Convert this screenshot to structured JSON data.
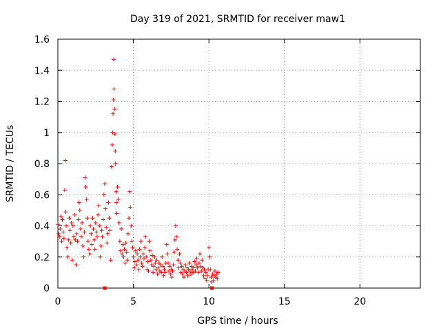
{
  "chart_data": {
    "type": "scatter",
    "title": "Day 319 of 2021, SRMTID for receiver maw1",
    "xlabel": "GPS time / hours",
    "ylabel": "SRMTID / TECUs",
    "xlim": [
      0,
      24
    ],
    "ylim": [
      0,
      1.6
    ],
    "xticks": [
      0,
      5,
      10,
      15,
      20
    ],
    "yticks": [
      0,
      0.2,
      0.4,
      0.6,
      0.8,
      1,
      1.2,
      1.4,
      1.6
    ],
    "xtick_labels": [
      "0",
      "5",
      "10",
      "15",
      "20"
    ],
    "ytick_labels": [
      "0",
      "0.2",
      "0.4",
      "0.6",
      "0.8",
      "1",
      "1.2",
      "1.4",
      "1.6"
    ],
    "grid": true,
    "marker": "+",
    "color": "#ff0000",
    "series": [
      {
        "name": "maw1",
        "points": [
          [
            0.0,
            0.41
          ],
          [
            0.05,
            0.35
          ],
          [
            0.1,
            0.33
          ],
          [
            0.15,
            0.38
          ],
          [
            0.2,
            0.46
          ],
          [
            0.25,
            0.3
          ],
          [
            0.3,
            0.44
          ],
          [
            0.35,
            0.36
          ],
          [
            0.4,
            0.32
          ],
          [
            0.45,
            0.63
          ],
          [
            0.5,
            0.82
          ],
          [
            0.52,
            0.49
          ],
          [
            0.55,
            0.4
          ],
          [
            0.6,
            0.26
          ],
          [
            0.65,
            0.2
          ],
          [
            0.7,
            0.31
          ],
          [
            0.75,
            0.45
          ],
          [
            0.8,
            0.37
          ],
          [
            0.85,
            0.29
          ],
          [
            0.9,
            0.42
          ],
          [
            0.95,
            0.18
          ],
          [
            1.0,
            0.4
          ],
          [
            1.05,
            0.33
          ],
          [
            1.1,
            0.47
          ],
          [
            1.15,
            0.31
          ],
          [
            1.2,
            0.15
          ],
          [
            1.25,
            0.35
          ],
          [
            1.3,
            0.3
          ],
          [
            1.35,
            0.44
          ],
          [
            1.4,
            0.55
          ],
          [
            1.45,
            0.5
          ],
          [
            1.5,
            0.38
          ],
          [
            1.55,
            0.33
          ],
          [
            1.6,
            0.42
          ],
          [
            1.65,
            0.27
          ],
          [
            1.7,
            0.2
          ],
          [
            1.75,
            0.36
          ],
          [
            1.8,
            0.71
          ],
          [
            1.85,
            0.65
          ],
          [
            1.9,
            0.57
          ],
          [
            1.95,
            0.45
          ],
          [
            2.0,
            0.3
          ],
          [
            2.05,
            0.25
          ],
          [
            2.1,
            0.22
          ],
          [
            2.15,
            0.4
          ],
          [
            2.2,
            0.35
          ],
          [
            2.25,
            0.28
          ],
          [
            2.3,
            0.45
          ],
          [
            2.35,
            0.38
          ],
          [
            2.4,
            0.31
          ],
          [
            2.45,
            0.25
          ],
          [
            2.5,
            0.42
          ],
          [
            2.55,
            0.36
          ],
          [
            2.6,
            0.33
          ],
          [
            2.65,
            0.47
          ],
          [
            2.7,
            0.53
          ],
          [
            2.75,
            0.4
          ],
          [
            2.8,
            0.2
          ],
          [
            2.85,
            0.27
          ],
          [
            2.9,
            0.37
          ],
          [
            2.95,
            0.33
          ],
          [
            3.0,
            0.44
          ],
          [
            3.05,
            0.6
          ],
          [
            3.1,
            0.67
          ],
          [
            3.15,
            0.51
          ],
          [
            3.2,
            0.39
          ],
          [
            3.25,
            0.29
          ],
          [
            3.3,
            0.35
          ],
          [
            3.35,
            0.55
          ],
          [
            3.4,
            0.45
          ],
          [
            3.45,
            0.37
          ],
          [
            3.5,
            0.18
          ],
          [
            3.55,
            0.78
          ],
          [
            3.6,
            0.92
          ],
          [
            3.62,
            1.0
          ],
          [
            3.65,
            1.12
          ],
          [
            3.68,
            1.21
          ],
          [
            3.7,
            1.47
          ],
          [
            3.72,
            1.28
          ],
          [
            3.75,
            1.15
          ],
          [
            3.78,
            0.99
          ],
          [
            3.8,
            0.88
          ],
          [
            3.82,
            0.8
          ],
          [
            3.85,
            0.62
          ],
          [
            3.88,
            0.55
          ],
          [
            3.9,
            0.48
          ],
          [
            3.95,
            0.65
          ],
          [
            4.0,
            0.57
          ],
          [
            4.05,
            0.42
          ],
          [
            4.1,
            0.3
          ],
          [
            4.15,
            0.24
          ],
          [
            4.2,
            0.38
          ],
          [
            4.25,
            0.22
          ],
          [
            4.3,
            0.28
          ],
          [
            4.35,
            0.2
          ],
          [
            4.4,
            0.25
          ],
          [
            4.45,
            0.16
          ],
          [
            4.5,
            0.29
          ],
          [
            4.55,
            0.23
          ],
          [
            4.6,
            0.18
          ],
          [
            4.65,
            0.35
          ],
          [
            4.7,
            0.45
          ],
          [
            4.75,
            0.62
          ],
          [
            4.8,
            0.52
          ],
          [
            4.85,
            0.4
          ],
          [
            4.9,
            0.3
          ],
          [
            4.95,
            0.26
          ],
          [
            5.0,
            0.2
          ],
          [
            5.05,
            0.13
          ],
          [
            5.1,
            0.17
          ],
          [
            5.15,
            0.24
          ],
          [
            5.2,
            0.15
          ],
          [
            5.25,
            0.22
          ],
          [
            5.3,
            0.18
          ],
          [
            5.35,
            0.12
          ],
          [
            5.4,
            0.25
          ],
          [
            5.45,
            0.2
          ],
          [
            5.5,
            0.3
          ],
          [
            5.55,
            0.16
          ],
          [
            5.6,
            0.14
          ],
          [
            5.65,
            0.22
          ],
          [
            5.7,
            0.19
          ],
          [
            5.75,
            0.26
          ],
          [
            5.8,
            0.33
          ],
          [
            5.85,
            0.2
          ],
          [
            5.9,
            0.12
          ],
          [
            5.95,
            0.17
          ],
          [
            6.0,
            0.11
          ],
          [
            6.05,
            0.3
          ],
          [
            6.1,
            0.24
          ],
          [
            6.15,
            0.18
          ],
          [
            6.2,
            0.15
          ],
          [
            6.25,
            0.21
          ],
          [
            6.3,
            0.1
          ],
          [
            6.35,
            0.14
          ],
          [
            6.4,
            0.2
          ],
          [
            6.45,
            0.16
          ],
          [
            6.5,
            0.12
          ],
          [
            6.55,
            0.18
          ],
          [
            6.6,
            0.09
          ],
          [
            6.65,
            0.13
          ],
          [
            6.7,
            0.16
          ],
          [
            6.75,
            0.11
          ],
          [
            6.8,
            0.15
          ],
          [
            6.85,
            0.1
          ],
          [
            6.9,
            0.2
          ],
          [
            6.95,
            0.14
          ],
          [
            7.0,
            0.08
          ],
          [
            7.05,
            0.12
          ],
          [
            7.1,
            0.1
          ],
          [
            7.15,
            0.16
          ],
          [
            7.2,
            0.28
          ],
          [
            7.25,
            0.22
          ],
          [
            7.3,
            0.16
          ],
          [
            7.35,
            0.11
          ],
          [
            7.4,
            0.14
          ],
          [
            7.45,
            0.09
          ],
          [
            7.5,
            0.12
          ],
          [
            7.55,
            0.07
          ],
          [
            7.6,
            0.11
          ],
          [
            7.65,
            0.15
          ],
          [
            7.7,
            0.23
          ],
          [
            7.75,
            0.31
          ],
          [
            7.8,
            0.4
          ],
          [
            7.85,
            0.33
          ],
          [
            7.9,
            0.25
          ],
          [
            7.95,
            0.18
          ],
          [
            8.0,
            0.13
          ],
          [
            8.05,
            0.22
          ],
          [
            8.1,
            0.16
          ],
          [
            8.15,
            0.1
          ],
          [
            8.2,
            0.14
          ],
          [
            8.25,
            0.09
          ],
          [
            8.3,
            0.12
          ],
          [
            8.35,
            0.07
          ],
          [
            8.4,
            0.11
          ],
          [
            8.45,
            0.15
          ],
          [
            8.5,
            0.1
          ],
          [
            8.55,
            0.13
          ],
          [
            8.6,
            0.08
          ],
          [
            8.65,
            0.12
          ],
          [
            8.7,
            0.16
          ],
          [
            8.75,
            0.11
          ],
          [
            8.8,
            0.09
          ],
          [
            8.85,
            0.14
          ],
          [
            8.9,
            0.12
          ],
          [
            8.95,
            0.1
          ],
          [
            9.0,
            0.13
          ],
          [
            9.05,
            0.17
          ],
          [
            9.1,
            0.11
          ],
          [
            9.15,
            0.15
          ],
          [
            9.2,
            0.19
          ],
          [
            9.25,
            0.13
          ],
          [
            9.3,
            0.1
          ],
          [
            9.35,
            0.16
          ],
          [
            9.4,
            0.22
          ],
          [
            9.45,
            0.14
          ],
          [
            9.5,
            0.11
          ],
          [
            9.55,
            0.18
          ],
          [
            9.6,
            0.13
          ],
          [
            9.65,
            0.08
          ],
          [
            9.7,
            0.12
          ],
          [
            9.75,
            0.06
          ],
          [
            9.8,
            0.1
          ],
          [
            9.85,
            0.05
          ],
          [
            9.9,
            0.08
          ],
          [
            9.95,
            0.12
          ],
          [
            10.0,
            0.26
          ],
          [
            10.05,
            0.2
          ],
          [
            10.1,
            0.12
          ],
          [
            10.15,
            0.07
          ],
          [
            10.2,
            0.04
          ],
          [
            10.25,
            0.09
          ],
          [
            10.3,
            0.05
          ],
          [
            10.35,
            0.08
          ],
          [
            10.4,
            0.11
          ],
          [
            10.45,
            0.07
          ],
          [
            10.5,
            0.09
          ],
          [
            10.55,
            0.06
          ],
          [
            10.6,
            0.1
          ]
        ]
      }
    ],
    "markers_on_axis": [
      3.1,
      10.2
    ]
  }
}
